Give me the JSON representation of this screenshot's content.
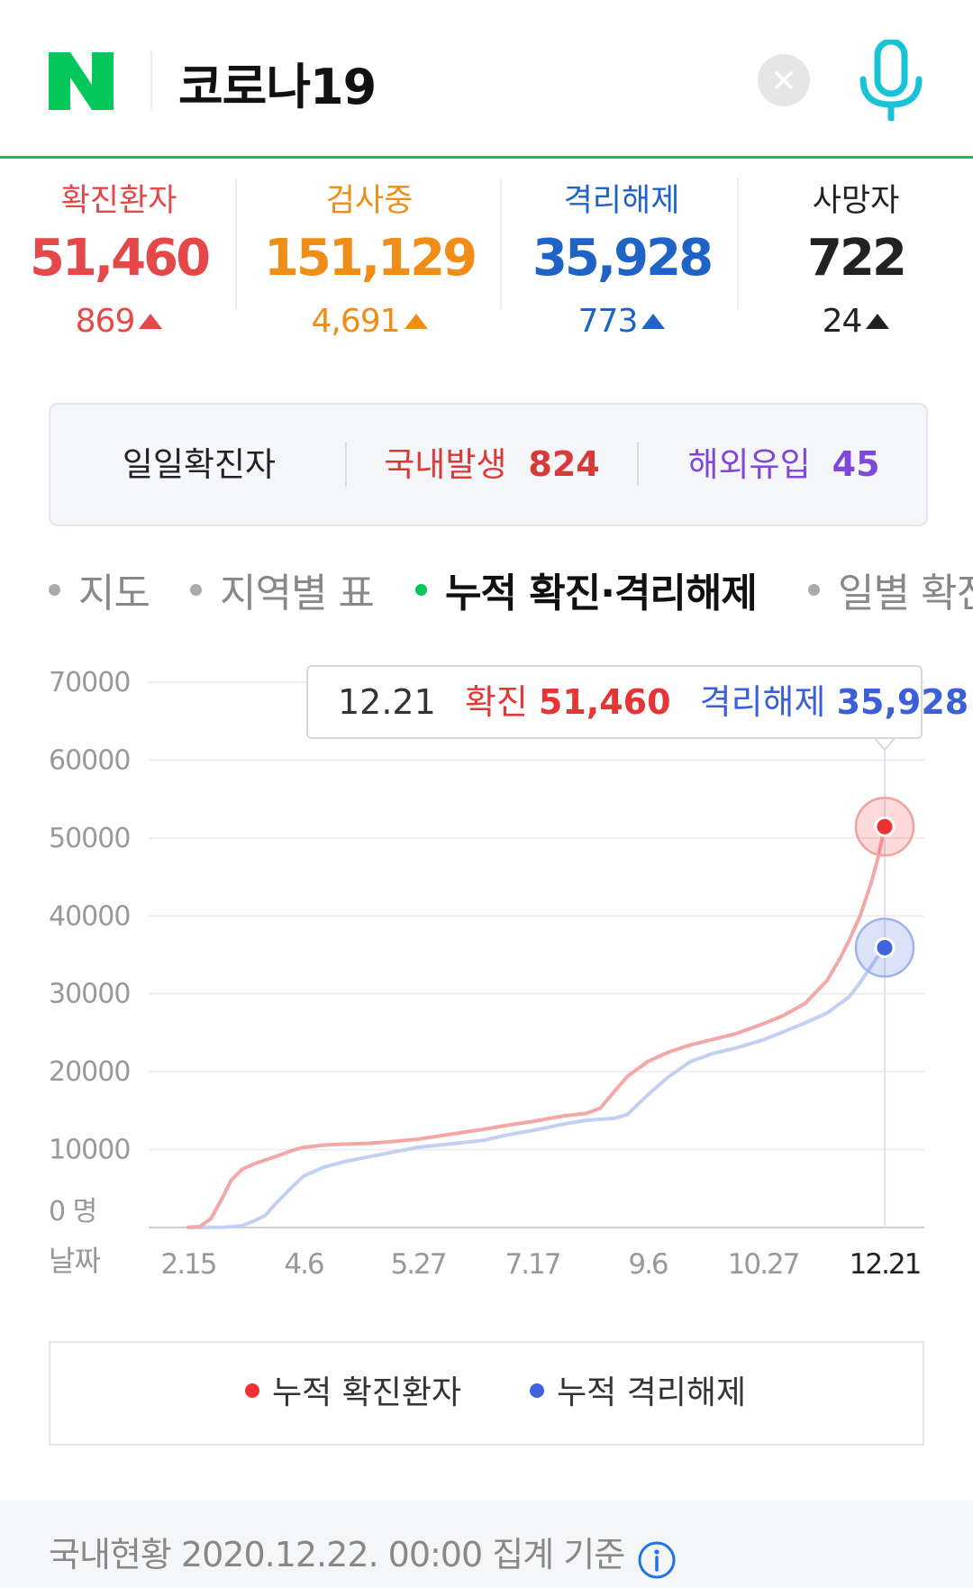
{
  "header": {
    "logo_letter": "N",
    "query": "코로나19",
    "colors": {
      "brand": "#03c75a",
      "mic": "#19c3d6"
    }
  },
  "stats": [
    {
      "label": "확진환자",
      "value": "51,460",
      "delta": "869",
      "color": "#e54848"
    },
    {
      "label": "검사중",
      "value": "151,129",
      "delta": "4,691",
      "color": "#ef8d16"
    },
    {
      "label": "격리해제",
      "value": "35,928",
      "delta": "773",
      "color": "#1f63c7"
    },
    {
      "label": "사망자",
      "value": "722",
      "delta": "24",
      "color": "#222222"
    }
  ],
  "daily": {
    "title": "일일확진자",
    "domestic_label": "국내발생",
    "domestic_value": "824",
    "overseas_label": "해외유입",
    "overseas_value": "45"
  },
  "tabs": [
    {
      "label": "지도",
      "active": false
    },
    {
      "label": "지역별 표",
      "active": false
    },
    {
      "label": "누적 확진·격리해제",
      "active": true
    },
    {
      "label": "일별 확진",
      "active": false
    }
  ],
  "chart_data": {
    "type": "line",
    "y_ticks": [
      "70000",
      "60000",
      "50000",
      "40000",
      "30000",
      "20000",
      "10000",
      "0 명"
    ],
    "x_axis_label": "날짜",
    "x_ticks": [
      "2.15",
      "4.6",
      "5.27",
      "7.17",
      "9.6",
      "10.27",
      "12.21"
    ],
    "ylim": [
      0,
      70000
    ],
    "grid": true,
    "series": [
      {
        "name": "누적 확진환자",
        "color": "#f4a7a7",
        "points": [
          [
            "2.15",
            28
          ],
          [
            "2.20",
            104
          ],
          [
            "2.25",
            1146
          ],
          [
            "3.1",
            3736
          ],
          [
            "3.5",
            6088
          ],
          [
            "3.10",
            7513
          ],
          [
            "3.15",
            8162
          ],
          [
            "3.20",
            8652
          ],
          [
            "3.25",
            9137
          ],
          [
            "4.1",
            9887
          ],
          [
            "4.6",
            10284
          ],
          [
            "4.15",
            10591
          ],
          [
            "4.25",
            10718
          ],
          [
            "5.5",
            10806
          ],
          [
            "5.15",
            11018
          ],
          [
            "5.27",
            11344
          ],
          [
            "6.10",
            11947
          ],
          [
            "6.25",
            12602
          ],
          [
            "7.5",
            13091
          ],
          [
            "7.17",
            13612
          ],
          [
            "7.31",
            14336
          ],
          [
            "8.10",
            14660
          ],
          [
            "8.16",
            15318
          ],
          [
            "8.22",
            17399
          ],
          [
            "8.28",
            19400
          ],
          [
            "9.6",
            21296
          ],
          [
            "9.15",
            22504
          ],
          [
            "9.25",
            23455
          ],
          [
            "10.5",
            24164
          ],
          [
            "10.15",
            24889
          ],
          [
            "10.27",
            26146
          ],
          [
            "11.5",
            27195
          ],
          [
            "11.15",
            28769
          ],
          [
            "11.25",
            31735
          ],
          [
            "12.1",
            34652
          ],
          [
            "12.5",
            36915
          ],
          [
            "12.10",
            40098
          ],
          [
            "12.15",
            44364
          ],
          [
            "12.18",
            47515
          ],
          [
            "12.21",
            51460
          ]
        ]
      },
      {
        "name": "누적 격리해제",
        "color": "#c3d0f3",
        "points": [
          [
            "2.15",
            9
          ],
          [
            "3.1",
            30
          ],
          [
            "3.5",
            88
          ],
          [
            "3.10",
            247
          ],
          [
            "3.15",
            834
          ],
          [
            "3.20",
            1540
          ],
          [
            "3.25",
            3166
          ],
          [
            "4.1",
            5228
          ],
          [
            "4.6",
            6598
          ],
          [
            "4.15",
            7757
          ],
          [
            "4.25",
            8501
          ],
          [
            "5.5",
            9072
          ],
          [
            "5.15",
            9632
          ],
          [
            "5.27",
            10295
          ],
          [
            "6.10",
            10718
          ],
          [
            "6.25",
            11172
          ],
          [
            "7.5",
            11832
          ],
          [
            "7.17",
            12455
          ],
          [
            "7.31",
            13280
          ],
          [
            "8.10",
            13770
          ],
          [
            "8.22",
            14006
          ],
          [
            "8.28",
            14524
          ],
          [
            "9.6",
            17023
          ],
          [
            "9.15",
            19310
          ],
          [
            "9.25",
            21327
          ],
          [
            "10.5",
            22355
          ],
          [
            "10.15",
            23050
          ],
          [
            "10.27",
            24087
          ],
          [
            "11.5",
            25096
          ],
          [
            "11.15",
            26263
          ],
          [
            "11.25",
            27532
          ],
          [
            "12.1",
            28800
          ],
          [
            "12.5",
            29612
          ],
          [
            "12.10",
            31493
          ],
          [
            "12.15",
            33610
          ],
          [
            "12.18",
            34840
          ],
          [
            "12.21",
            35928
          ]
        ]
      }
    ],
    "tooltip": {
      "date": "12.21",
      "confirmed_label": "확진",
      "confirmed_value": "51,460",
      "released_label": "격리해제",
      "released_value": "35,928"
    },
    "legend_position": "bottom",
    "legend": [
      {
        "label": "누적 확진환자",
        "color": "#ee3232"
      },
      {
        "label": "누적 격리해제",
        "color": "#3f63db"
      }
    ]
  },
  "footer": {
    "text": "국내현황 2020.12.22. 00:00 집계 기준",
    "icon": "info-icon"
  }
}
